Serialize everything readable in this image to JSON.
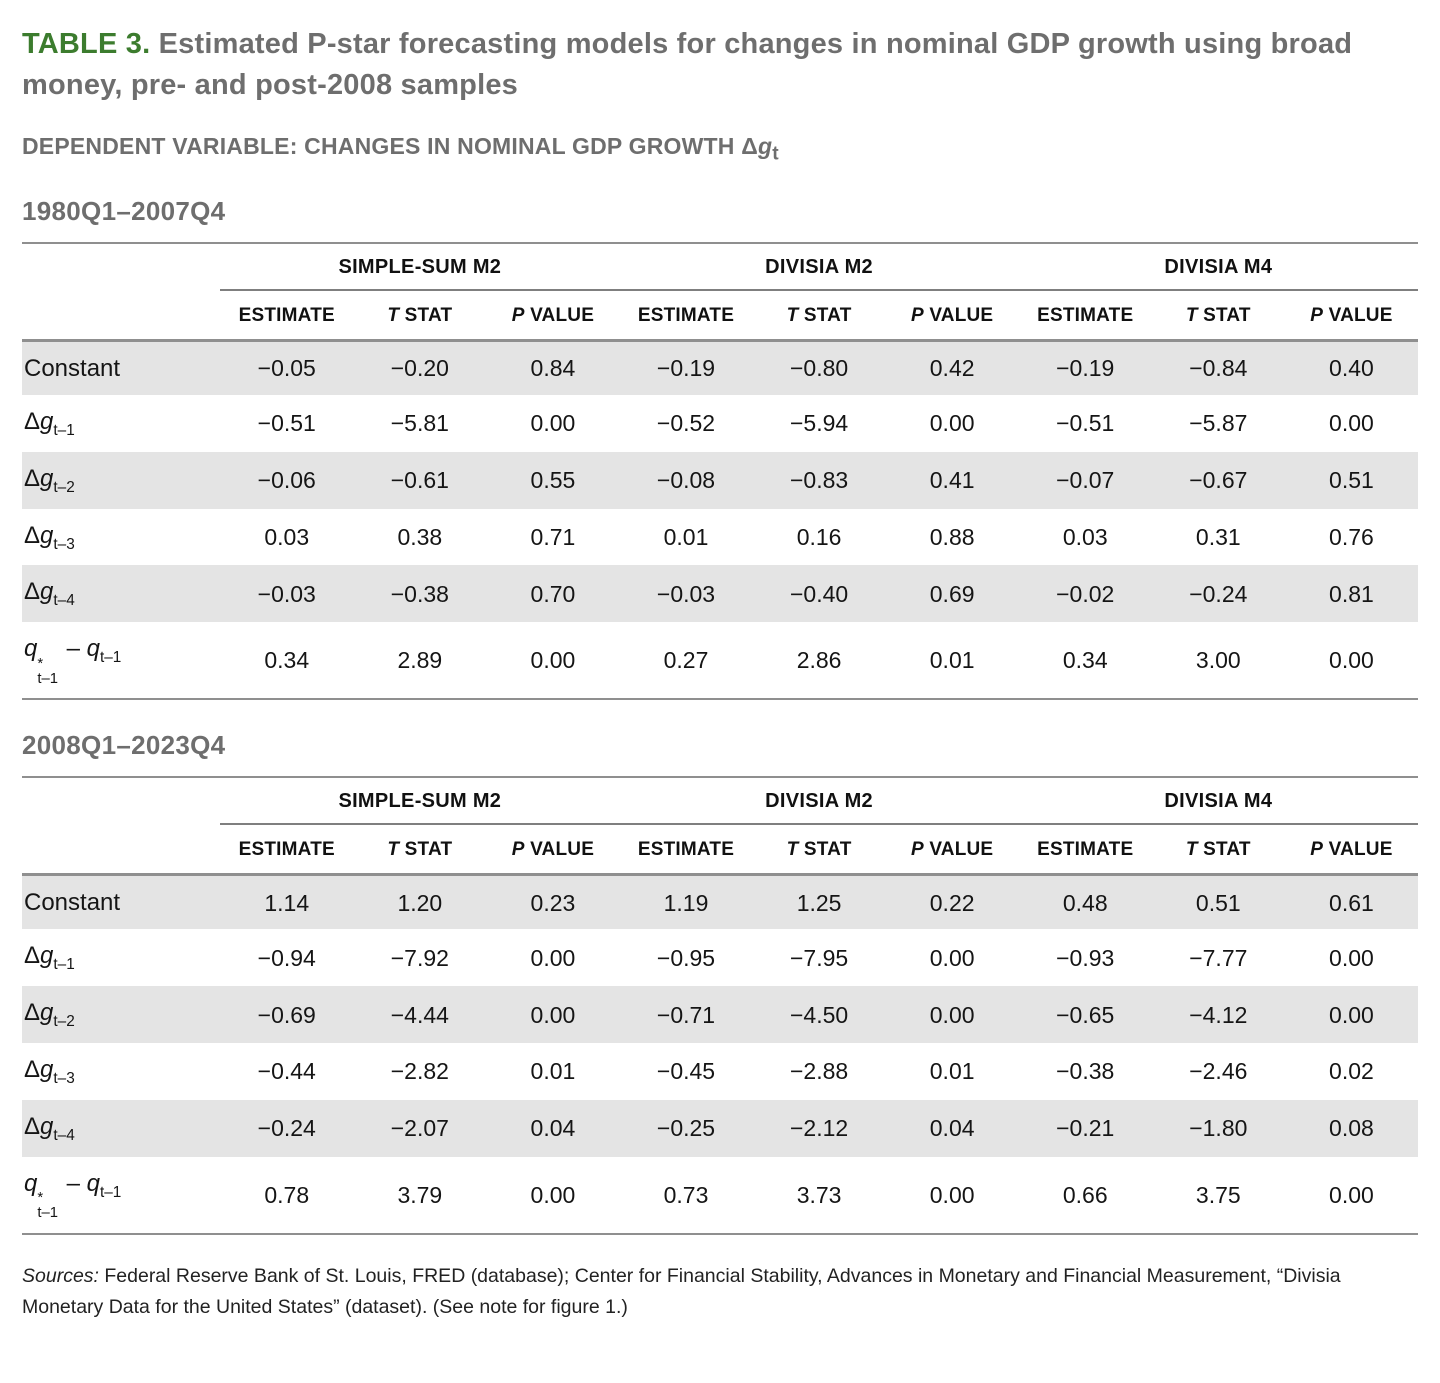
{
  "colors": {
    "accent_green": "#3c7c2e",
    "heading_gray": "#6e6e6e",
    "row_shade": "#e4e4e4",
    "rule_gray": "#8f8f8f"
  },
  "title": {
    "label": "TABLE 3.",
    "text": " Estimated P-star forecasting models for changes in nominal GDP growth using broad money, pre- and post-2008 samples"
  },
  "dependent_variable_html": "DEPENDENT VARIABLE: CHANGES IN NOMINAL GDP GROWTH Δ<i>g</i><sub>t</sub>",
  "table": {
    "group_headers": [
      "SIMPLE-SUM M2",
      "DIVISIA M2",
      "DIVISIA M4"
    ],
    "column_headers_html": [
      "ESTIMATE",
      "<i>T</i> STAT",
      "<i>P</i> VALUE"
    ],
    "row_labels_html": [
      "Constant",
      "Δ<i>g</i><sub>t–1</sub>",
      "Δ<i>g</i><sub>t–2</sub>",
      "Δ<i>g</i><sub>t–3</sub>",
      "Δ<i>g</i><sub>t–4</sub>",
      "<i>q</i><span class=\"ss\"><sup>*</sup><sub>t–1</sub></span> – <i>q</i><sub>t–1</sub>"
    ],
    "shaded_row_indexes": [
      0,
      2,
      4
    ],
    "panels": [
      {
        "period": "1980Q1–2007Q4",
        "rows": [
          [
            "−0.05",
            "−0.20",
            "0.84",
            "−0.19",
            "−0.80",
            "0.42",
            "−0.19",
            "−0.84",
            "0.40"
          ],
          [
            "−0.51",
            "−5.81",
            "0.00",
            "−0.52",
            "−5.94",
            "0.00",
            "−0.51",
            "−5.87",
            "0.00"
          ],
          [
            "−0.06",
            "−0.61",
            "0.55",
            "−0.08",
            "−0.83",
            "0.41",
            "−0.07",
            "−0.67",
            "0.51"
          ],
          [
            "0.03",
            "0.38",
            "0.71",
            "0.01",
            "0.16",
            "0.88",
            "0.03",
            "0.31",
            "0.76"
          ],
          [
            "−0.03",
            "−0.38",
            "0.70",
            "−0.03",
            "−0.40",
            "0.69",
            "−0.02",
            "−0.24",
            "0.81"
          ],
          [
            "0.34",
            "2.89",
            "0.00",
            "0.27",
            "2.86",
            "0.01",
            "0.34",
            "3.00",
            "0.00"
          ]
        ]
      },
      {
        "period": "2008Q1–2023Q4",
        "rows": [
          [
            "1.14",
            "1.20",
            "0.23",
            "1.19",
            "1.25",
            "0.22",
            "0.48",
            "0.51",
            "0.61"
          ],
          [
            "−0.94",
            "−7.92",
            "0.00",
            "−0.95",
            "−7.95",
            "0.00",
            "−0.93",
            "−7.77",
            "0.00"
          ],
          [
            "−0.69",
            "−4.44",
            "0.00",
            "−0.71",
            "−4.50",
            "0.00",
            "−0.65",
            "−4.12",
            "0.00"
          ],
          [
            "−0.44",
            "−2.82",
            "0.01",
            "−0.45",
            "−2.88",
            "0.01",
            "−0.38",
            "−2.46",
            "0.02"
          ],
          [
            "−0.24",
            "−2.07",
            "0.04",
            "−0.25",
            "−2.12",
            "0.04",
            "−0.21",
            "−1.80",
            "0.08"
          ],
          [
            "0.78",
            "3.79",
            "0.00",
            "0.73",
            "3.73",
            "0.00",
            "0.66",
            "3.75",
            "0.00"
          ]
        ]
      }
    ]
  },
  "sources": {
    "label": "Sources:",
    "text": " Federal Reserve Bank of St. Louis, FRED (database); Center for Financial Stability, Advances in Monetary and Financial Measurement, “Divisia Monetary Data for the United States” (dataset). (See note for figure 1.)"
  }
}
